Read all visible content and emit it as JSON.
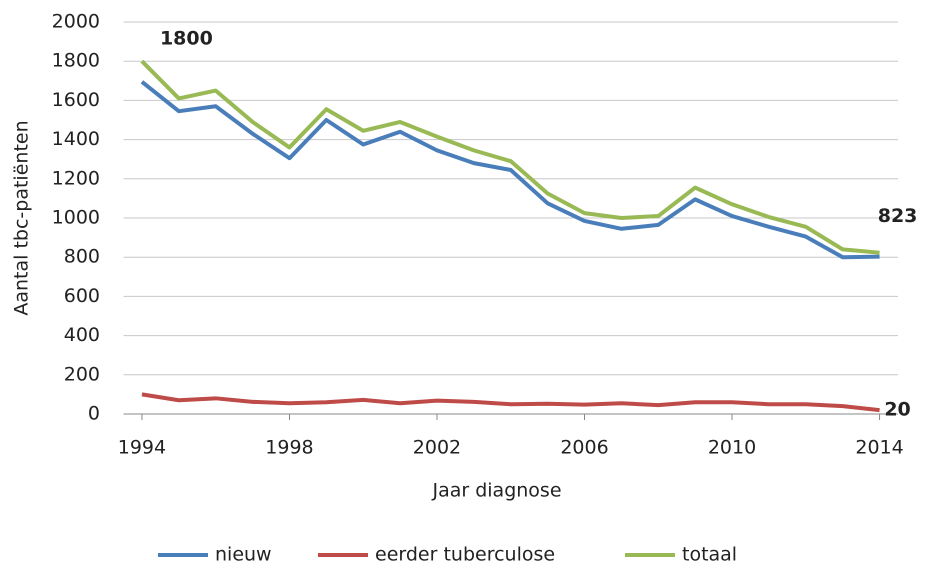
{
  "chart_data": {
    "type": "line",
    "x_label": "Jaar diagnose",
    "y_label": "Aantal tbc-patiënten",
    "x": [
      1994,
      1995,
      1996,
      1997,
      1998,
      1999,
      2000,
      2001,
      2002,
      2003,
      2004,
      2005,
      2006,
      2007,
      2008,
      2009,
      2010,
      2011,
      2012,
      2013,
      2014
    ],
    "series": [
      {
        "name": "nieuw",
        "color": "#4a7ebb",
        "values": [
          1695,
          1545,
          1570,
          1430,
          1305,
          1500,
          1375,
          1440,
          1345,
          1280,
          1245,
          1075,
          985,
          945,
          965,
          1095,
          1010,
          955,
          905,
          800,
          803
        ]
      },
      {
        "name": "eerder tuberculose",
        "color": "#be4b48",
        "values": [
          100,
          70,
          80,
          62,
          55,
          60,
          72,
          55,
          68,
          62,
          50,
          52,
          48,
          55,
          45,
          60,
          60,
          50,
          50,
          40,
          20
        ],
        "value_labels": [
          null,
          null,
          null,
          null,
          null,
          null,
          null,
          null,
          null,
          null,
          null,
          null,
          null,
          null,
          null,
          null,
          null,
          null,
          null,
          null,
          "20"
        ]
      },
      {
        "name": "totaal",
        "color": "#98b954",
        "values": [
          1800,
          1610,
          1650,
          1490,
          1360,
          1555,
          1445,
          1490,
          1415,
          1345,
          1290,
          1125,
          1025,
          1000,
          1010,
          1155,
          1070,
          1005,
          955,
          840,
          823
        ],
        "value_labels": [
          "1800",
          null,
          null,
          null,
          null,
          null,
          null,
          null,
          null,
          null,
          null,
          null,
          null,
          null,
          null,
          null,
          null,
          null,
          null,
          null,
          "823"
        ]
      }
    ],
    "xlim": [
      1993.5,
      2014.5
    ],
    "xticks": [
      1994,
      1998,
      2002,
      2006,
      2010,
      2014
    ],
    "ylim": [
      0,
      2000
    ],
    "yticks": [
      0,
      200,
      400,
      600,
      800,
      1000,
      1200,
      1400,
      1600,
      1800,
      2000
    ],
    "grid": true,
    "legend": "bottom"
  }
}
